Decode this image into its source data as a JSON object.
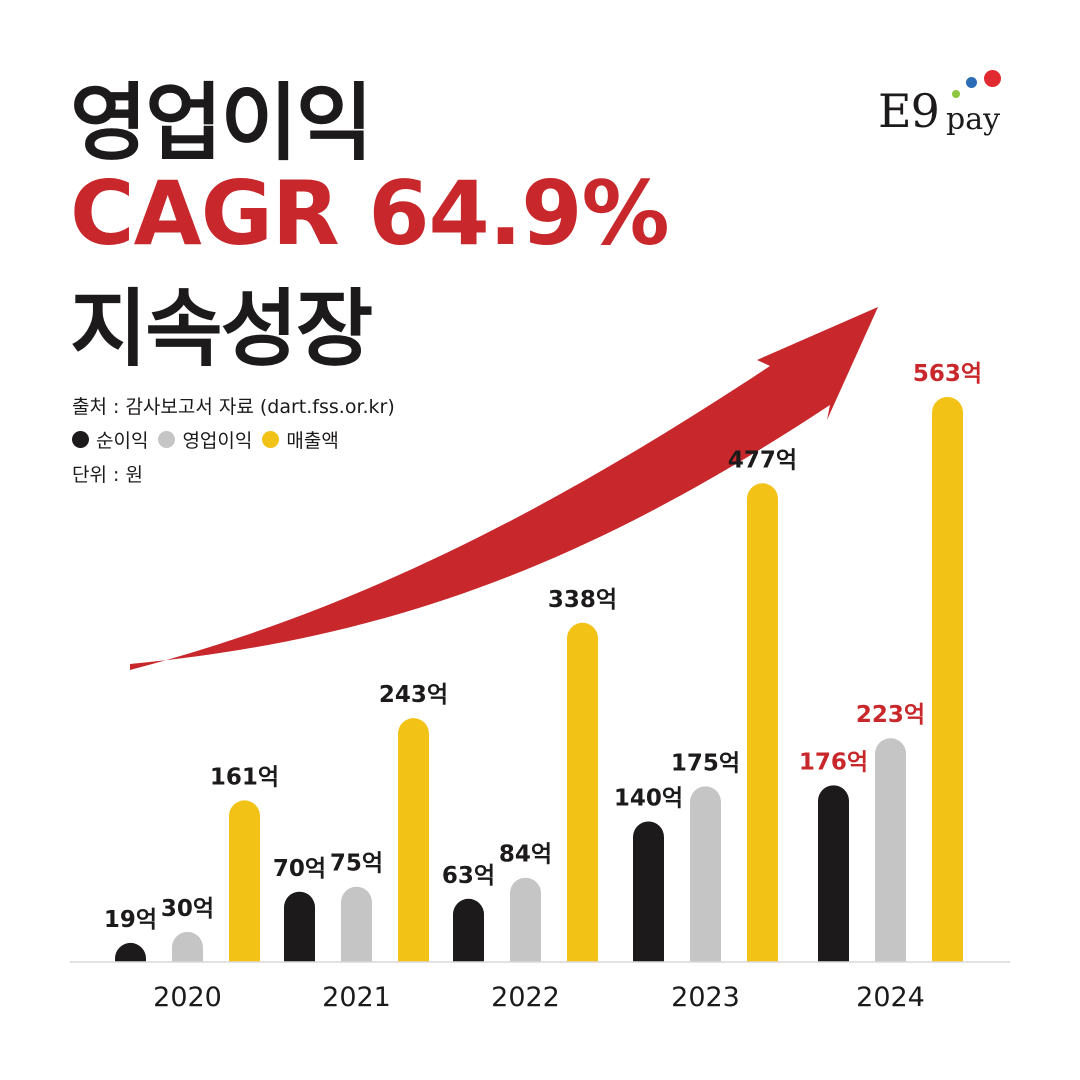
{
  "header": {
    "title_line1": "영업이익",
    "title_line2": "CAGR 64.9%",
    "title_line3": "지속성장"
  },
  "logo": {
    "main": "E9",
    "sub": "pay",
    "dot_colors": [
      "#8dc63f",
      "#2a6db5",
      "#e02a2f"
    ]
  },
  "info": {
    "source": "출처 : 감사보고서 자료 (dart.fss.or.kr)",
    "unit": "단위 : 원"
  },
  "colors": {
    "black": "#1c1a1b",
    "gray": "#c6c5c5",
    "yellow": "#f2c316",
    "accent_red": "#c8272b",
    "axis": "#d9d9d9"
  },
  "chart_data": {
    "type": "bar",
    "categories": [
      "2020",
      "2021",
      "2022",
      "2023",
      "2024"
    ],
    "series": [
      {
        "name": "순이익",
        "color": "#1c1a1b",
        "values": [
          19,
          70,
          63,
          140,
          176
        ],
        "labels": [
          "19억",
          "70억",
          "63억",
          "140억",
          "176억"
        ]
      },
      {
        "name": "영업이익",
        "color": "#c6c5c5",
        "values": [
          30,
          75,
          84,
          175,
          223
        ],
        "labels": [
          "30억",
          "75억",
          "84억",
          "175억",
          "223억"
        ]
      },
      {
        "name": "매출액",
        "color": "#f2c316",
        "values": [
          161,
          243,
          338,
          477,
          563
        ],
        "labels": [
          "161억",
          "243억",
          "338억",
          "477억",
          "563억"
        ]
      }
    ],
    "highlight_category": "2024",
    "highlight_color": "#c8272b",
    "annotation": "CAGR 64.9%",
    "legend_position": "top-left",
    "grid": false
  }
}
